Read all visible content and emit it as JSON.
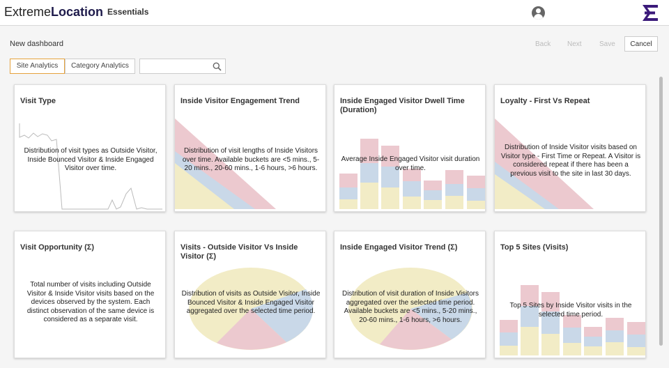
{
  "header": {
    "brand_part1": "Extreme",
    "brand_part2": "Location",
    "brand_part3": "Essentials"
  },
  "dashboard": {
    "title": "New dashboard",
    "back_label": "Back",
    "next_label": "Next",
    "save_label": "Save",
    "cancel_label": "Cancel"
  },
  "tabs": [
    "Site Analytics",
    "Category Analytics"
  ],
  "search": {
    "value": "",
    "placeholder": ""
  },
  "cards": [
    {
      "title": "Visit Type",
      "description": "Distribution of visit types as Outside Visitor, Inside Bounced Visitor & Inside Engaged Visitor over time."
    },
    {
      "title": "Inside Visitor Engagement Trend",
      "description": "Distribution of visit lengths of Inside Visitors over time. Available buckets are <5 mins., 5-20 mins., 20-60 mins., 1-6 hours, >6 hours."
    },
    {
      "title": "Inside Engaged Visitor Dwell Time (Duration)",
      "description": "Average Inside Engaged Visitor visit duration over time."
    },
    {
      "title": "Loyalty - First Vs Repeat",
      "description": "Distribution of Inside Visitor visits based on Visitor type - First Time or Repeat. A Visitor is considered repeat if there has been a previous visit to the site in last 30 days."
    },
    {
      "title": "Visit Opportunity (Σ)",
      "description": "Total number of visits including Outside Visitor & Inside Visitor visits based on the devices observed by the system. Each distinct observation of the same device is considered as a separate visit."
    },
    {
      "title": "Visits - Outside Visitor Vs Inside Visitor (Σ)",
      "description": "Distribution of visits as Outside Visitor, Inside Bounced Visitor & Inside Engaged Visitor aggregated over the selected time period."
    },
    {
      "title": "Inside Engaged Visitor Trend (Σ)",
      "description": "Distribution of visit duration of Inside Visitors aggregated over the selected time period. Available buckets are <5 mins., 5-20 mins., 20-60 mins., 1-6 hours, >6 hours."
    },
    {
      "title": "Top 5 Sites (Visits)",
      "description": "Top 5 Sites by Inside Visitor visits in the selected time period."
    }
  ],
  "colors": {
    "pink": "#ecc9cf",
    "blue": "#c9d8e8",
    "yellow": "#f2ecc6",
    "accent": "#e6a23c",
    "brand": "#1e1b4b"
  }
}
